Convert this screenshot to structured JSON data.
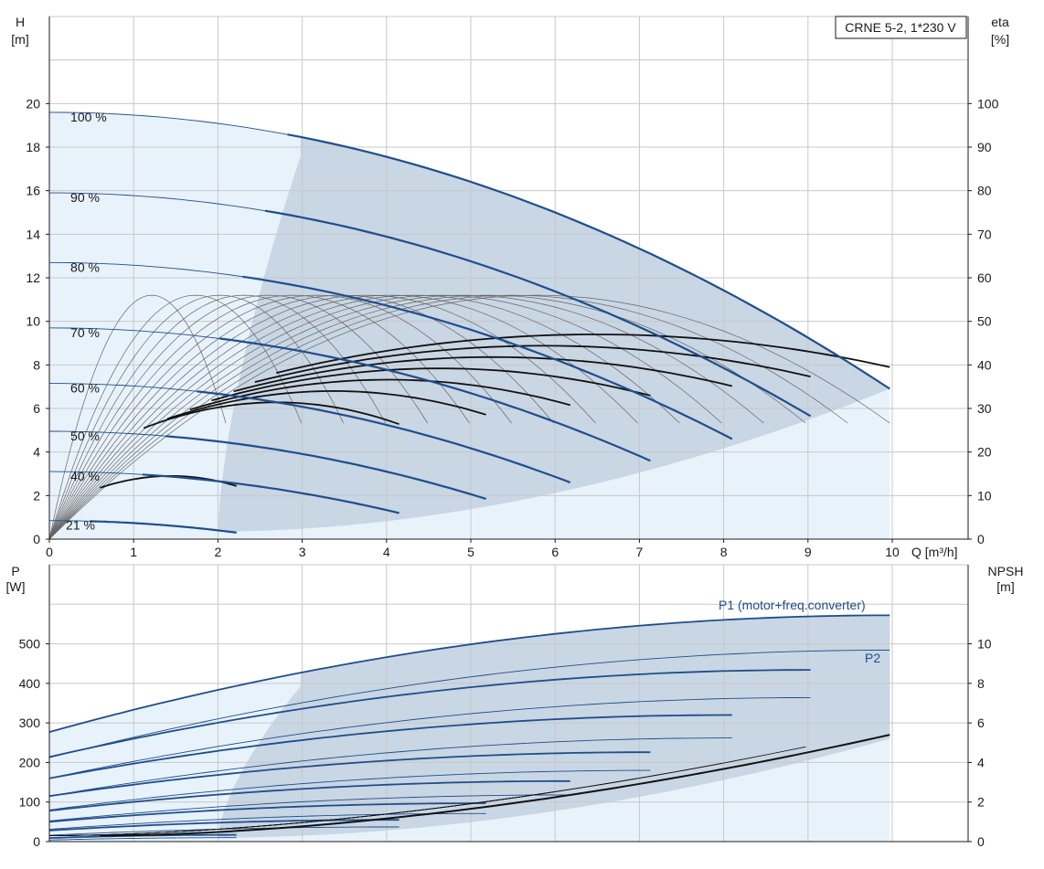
{
  "chart_data": [
    {
      "type": "line",
      "title": "CRNE 5-2, 1*230 V",
      "xlabel": "Q [m³/h]",
      "ylabel_left": [
        "H",
        "[m]"
      ],
      "ylabel_right": [
        "eta",
        "[%]"
      ],
      "xlim": [
        0,
        10.9
      ],
      "ylim_left": [
        0,
        24
      ],
      "ylim_right": [
        0,
        120
      ],
      "xticks": [
        0,
        1,
        2,
        3,
        4,
        5,
        6,
        7,
        8,
        9,
        10
      ],
      "yticks_left": [
        0,
        2,
        4,
        6,
        8,
        10,
        12,
        14,
        16,
        18,
        20
      ],
      "yticks_right": [
        0,
        10,
        20,
        30,
        40,
        50,
        60,
        70,
        80,
        90,
        100
      ],
      "grid": true,
      "head_curves": [
        {
          "name": "100 %",
          "speed": 1.0,
          "h0": 19.6,
          "qmax": 9.97,
          "hmax": 6.9
        },
        {
          "name": "90 %",
          "speed": 0.9,
          "h0": 15.9,
          "qmax": 9.03,
          "hmax": 5.65
        },
        {
          "name": "80 %",
          "speed": 0.8,
          "h0": 12.7,
          "qmax": 8.1,
          "hmax": 4.6
        },
        {
          "name": "70 %",
          "speed": 0.7,
          "h0": 9.7,
          "qmax": 7.13,
          "hmax": 3.6
        },
        {
          "name": "60 %",
          "speed": 0.6,
          "h0": 7.15,
          "qmax": 6.18,
          "hmax": 2.6
        },
        {
          "name": "50 %",
          "speed": 0.5,
          "h0": 4.95,
          "qmax": 5.18,
          "hmax": 1.85
        },
        {
          "name": "40 %",
          "speed": 0.4,
          "h0": 3.1,
          "qmax": 4.15,
          "hmax": 1.2
        },
        {
          "name": "21 %",
          "speed": 0.21,
          "h0": 0.85,
          "qmax": 2.22,
          "hmax": 0.3
        }
      ],
      "efficiency_curves": {
        "peak_eta": 56,
        "speeds": [
          1.0,
          0.95,
          0.9,
          0.85,
          0.8,
          0.75,
          0.7,
          0.65,
          0.6,
          0.55,
          0.5,
          0.45,
          0.4,
          0.35,
          0.3,
          0.21
        ],
        "eta_at_100_speed_qmax": 38
      }
    },
    {
      "type": "line",
      "xlabel": "",
      "ylabel_left": [
        "P",
        "[W]"
      ],
      "ylabel_right": [
        "NPSH",
        "[m]"
      ],
      "xlim": [
        0,
        10.9
      ],
      "ylim_left": [
        0,
        700
      ],
      "ylim_right": [
        0,
        14
      ],
      "yticks_left": [
        0,
        100,
        200,
        300,
        400,
        500
      ],
      "yticks_right": [
        0,
        2,
        4,
        6,
        8,
        10
      ],
      "grid": true,
      "series_labels": {
        "p1": "P1 (motor+freq.converter)",
        "p2": "P2"
      },
      "p1_curves": [
        {
          "speed": 1.0,
          "p0": 277,
          "pmax": 572,
          "qmax": 9.97
        },
        {
          "speed": 0.9,
          "p0": 214,
          "pmax": 434,
          "qmax": 9.03
        },
        {
          "speed": 0.8,
          "p0": 160,
          "pmax": 320,
          "qmax": 8.1
        },
        {
          "speed": 0.7,
          "p0": 115,
          "pmax": 226,
          "qmax": 7.13
        },
        {
          "speed": 0.6,
          "p0": 78,
          "pmax": 153,
          "qmax": 6.18
        },
        {
          "speed": 0.5,
          "p0": 50,
          "pmax": 97,
          "qmax": 5.18
        },
        {
          "speed": 0.4,
          "p0": 28,
          "pmax": 55,
          "qmax": 4.15
        },
        {
          "speed": 0.21,
          "p0": 9,
          "pmax": 17,
          "qmax": 2.22
        }
      ],
      "p2_curves": [
        {
          "speed": 1.0,
          "p0": 212,
          "pmax": 484,
          "qmax": 9.97
        },
        {
          "speed": 0.9,
          "p0": 160,
          "pmax": 364,
          "qmax": 9.03
        },
        {
          "speed": 0.8,
          "p0": 115,
          "pmax": 262,
          "qmax": 8.1
        },
        {
          "speed": 0.7,
          "p0": 80,
          "pmax": 180,
          "qmax": 7.13
        },
        {
          "speed": 0.6,
          "p0": 52,
          "pmax": 118,
          "qmax": 6.18
        },
        {
          "speed": 0.5,
          "p0": 31,
          "pmax": 71,
          "qmax": 5.18
        },
        {
          "speed": 0.4,
          "p0": 16,
          "pmax": 37,
          "qmax": 4.15
        },
        {
          "speed": 0.21,
          "p0": 4,
          "pmax": 10,
          "qmax": 2.22
        }
      ],
      "npsh_curve": {
        "q": [
          0.6,
          2,
          4,
          6,
          8,
          9.97
        ],
        "npsh": [
          0.3,
          0.6,
          1.3,
          2.2,
          3.6,
          5.4
        ]
      }
    }
  ],
  "colors": {
    "blue": "#1f4e8c",
    "shade": "#c9d6e4",
    "shade_light": "#e8f2fb",
    "grid": "#c8c8c8",
    "text": "#1a1a1a"
  }
}
